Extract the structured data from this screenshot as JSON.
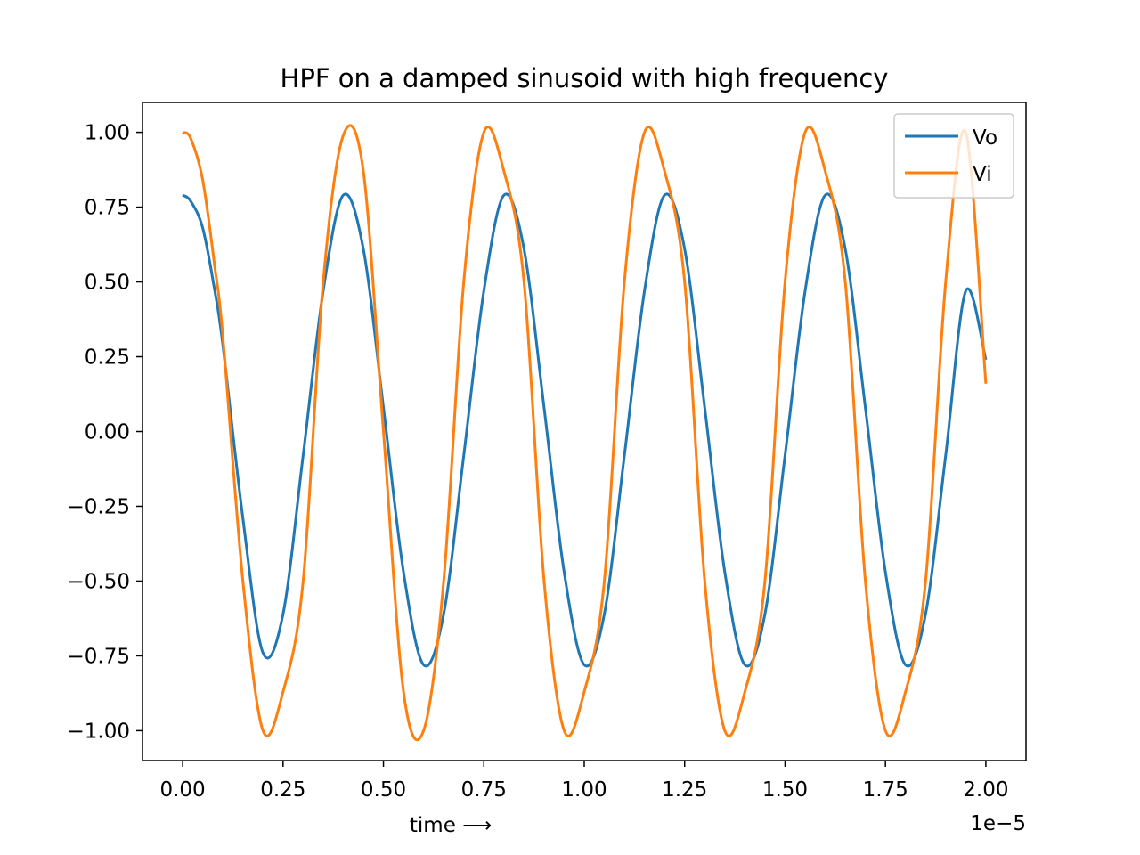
{
  "chart_data": {
    "type": "line",
    "title": "HPF on a damped sinusoid with high frequency",
    "xlabel": "time ⟶",
    "ylabel": "",
    "x_offset_label": "1e−5",
    "xlim": [
      -0.1,
      2.1
    ],
    "ylim": [
      -1.1,
      1.1
    ],
    "x_ticks": [
      0.0,
      0.25,
      0.5,
      0.75,
      1.0,
      1.25,
      1.5,
      1.75,
      2.0
    ],
    "x_tick_labels": [
      "0.00",
      "0.25",
      "0.50",
      "0.75",
      "1.00",
      "1.25",
      "1.50",
      "1.75",
      "2.00"
    ],
    "y_ticks": [
      1.0,
      0.75,
      0.5,
      0.25,
      0.0,
      -0.25,
      -0.5,
      -0.75,
      -1.0
    ],
    "y_tick_labels": [
      "1.00",
      "0.75",
      "0.50",
      "0.25",
      "0.00",
      "−0.25",
      "−0.50",
      "−0.75",
      "−1.00"
    ],
    "grid": false,
    "legend_position": "top-right",
    "series": [
      {
        "name": "Vo",
        "color": "#1f77b4",
        "x": [
          0.0,
          0.02,
          0.05,
          0.08,
          0.1,
          0.15,
          0.2,
          0.25,
          0.3,
          0.35,
          0.4,
          0.45,
          0.5,
          0.55,
          0.6,
          0.65,
          0.7,
          0.75,
          0.8,
          0.85,
          0.9,
          0.95,
          1.0,
          1.05,
          1.1,
          1.15,
          1.2,
          1.25,
          1.3,
          1.35,
          1.4,
          1.45,
          1.5,
          1.55,
          1.6,
          1.65,
          1.7,
          1.75,
          1.8,
          1.85,
          1.9,
          1.95,
          2.0
        ],
        "values": [
          0.79,
          0.77,
          0.68,
          0.47,
          0.29,
          -0.29,
          -0.74,
          -0.61,
          -0.08,
          0.47,
          0.79,
          0.61,
          0.08,
          -0.47,
          -0.78,
          -0.61,
          -0.08,
          0.47,
          0.79,
          0.61,
          0.08,
          -0.47,
          -0.78,
          -0.61,
          -0.08,
          0.47,
          0.79,
          0.61,
          0.08,
          -0.47,
          -0.78,
          -0.61,
          -0.08,
          0.47,
          0.79,
          0.61,
          0.08,
          -0.47,
          -0.78,
          -0.61,
          -0.08,
          0.47,
          0.24
        ]
      },
      {
        "name": "Vi",
        "color": "#ff7f0e",
        "x": [
          0.0,
          0.02,
          0.05,
          0.08,
          0.1,
          0.15,
          0.2,
          0.25,
          0.3,
          0.35,
          0.4,
          0.45,
          0.5,
          0.55,
          0.6,
          0.65,
          0.7,
          0.75,
          0.8,
          0.85,
          0.9,
          0.95,
          1.0,
          1.05,
          1.1,
          1.15,
          1.2,
          1.25,
          1.3,
          1.35,
          1.4,
          1.45,
          1.5,
          1.55,
          1.6,
          1.65,
          1.7,
          1.75,
          1.8,
          1.85,
          1.9,
          1.95,
          2.0
        ],
        "values": [
          1.0,
          0.98,
          0.84,
          0.55,
          0.32,
          -0.5,
          -1.0,
          -0.87,
          -0.5,
          0.5,
          0.99,
          0.87,
          0.0,
          -0.87,
          -1.0,
          -0.5,
          0.5,
          1.0,
          0.87,
          0.5,
          -0.5,
          -1.0,
          -0.87,
          -0.5,
          0.5,
          1.0,
          0.87,
          0.5,
          -0.5,
          -1.0,
          -0.87,
          -0.5,
          0.5,
          1.0,
          0.87,
          0.5,
          -0.5,
          -1.0,
          -0.87,
          -0.5,
          0.5,
          1.0,
          0.16
        ]
      }
    ]
  }
}
